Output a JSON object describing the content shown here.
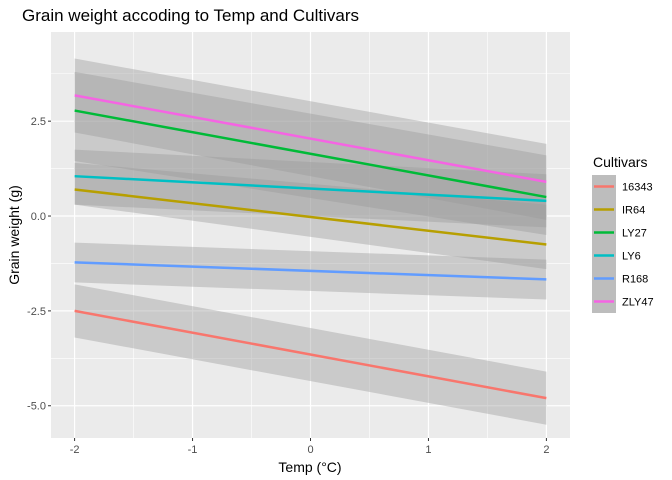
{
  "chart_data": {
    "type": "line",
    "title": "Grain weight accoding to Temp and Cultivars",
    "xlabel": "Temp (°C)",
    "ylabel": "Grain weight (g)",
    "xlim": [
      -2.2,
      2.2
    ],
    "ylim": [
      -5.85,
      4.85
    ],
    "x_ticks": [
      -2,
      -1,
      0,
      1,
      2
    ],
    "x_tick_labels": [
      "-2",
      "-1",
      "0",
      "1",
      "2"
    ],
    "y_ticks": [
      -5.0,
      -2.5,
      0.0,
      2.5
    ],
    "y_tick_labels": [
      "-5.0",
      "-2.5",
      "0.0",
      "2.5"
    ],
    "grid": true,
    "legend": {
      "title": "Cultivars",
      "position": "right"
    },
    "series": [
      {
        "name": "16343",
        "color": "#F8766D",
        "x": [
          -2,
          2
        ],
        "y": [
          -2.5,
          -4.8
        ],
        "ci_lower": [
          -3.2,
          -5.5
        ],
        "ci_upper": [
          -1.8,
          -4.1
        ]
      },
      {
        "name": "IR64",
        "color": "#B79F00",
        "x": [
          -2,
          2
        ],
        "y": [
          0.7,
          -0.75
        ],
        "ci_lower": [
          0.3,
          -1.4
        ],
        "ci_upper": [
          1.4,
          0.3
        ]
      },
      {
        "name": "LY27",
        "color": "#00BA38",
        "x": [
          -2,
          2
        ],
        "y": [
          2.78,
          0.5
        ],
        "ci_lower": [
          1.45,
          -0.5
        ],
        "ci_upper": [
          3.8,
          1.6
        ]
      },
      {
        "name": "LY6",
        "color": "#00BFC4",
        "x": [
          -2,
          2
        ],
        "y": [
          1.05,
          0.4
        ],
        "ci_lower": [
          0.3,
          -0.3
        ],
        "ci_upper": [
          1.75,
          1.1
        ]
      },
      {
        "name": "R168",
        "color": "#619CFF",
        "x": [
          -2,
          2
        ],
        "y": [
          -1.22,
          -1.67
        ],
        "ci_lower": [
          -1.75,
          -2.2
        ],
        "ci_upper": [
          -0.7,
          -1.15
        ]
      },
      {
        "name": "ZLY47",
        "color": "#F564E3",
        "x": [
          -2,
          2
        ],
        "y": [
          3.18,
          0.9
        ],
        "ci_lower": [
          2.2,
          -0.1
        ],
        "ci_upper": [
          4.15,
          1.9
        ]
      }
    ]
  }
}
